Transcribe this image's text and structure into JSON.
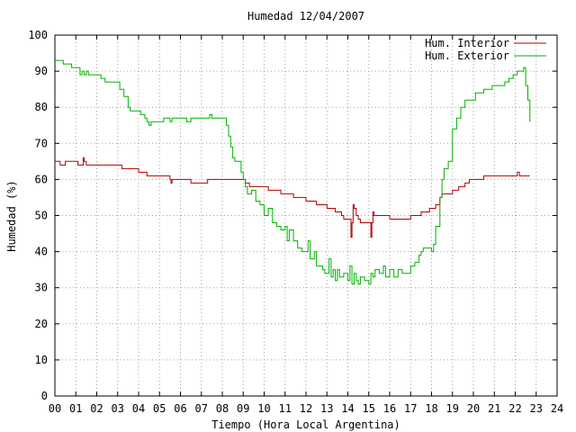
{
  "chart_data": {
    "type": "line",
    "title": "Humedad 12/04/2007",
    "xlabel": "Tiempo (Hora Local Argentina)",
    "ylabel": "Humedad (%)",
    "xlim": [
      0,
      24
    ],
    "ylim": [
      0,
      100
    ],
    "x_ticks": [
      "00",
      "01",
      "02",
      "03",
      "04",
      "05",
      "06",
      "07",
      "08",
      "09",
      "10",
      "11",
      "12",
      "13",
      "14",
      "15",
      "16",
      "17",
      "18",
      "19",
      "20",
      "21",
      "22",
      "23",
      "24"
    ],
    "y_ticks": [
      "0",
      "10",
      "20",
      "30",
      "40",
      "50",
      "60",
      "70",
      "80",
      "90",
      "100"
    ],
    "grid": true,
    "legend_position": "top-right",
    "series": [
      {
        "name": "Hum. Interior",
        "color": "#b00000",
        "points": [
          [
            0.0,
            65
          ],
          [
            0.2,
            65
          ],
          [
            0.25,
            64
          ],
          [
            0.45,
            64
          ],
          [
            0.5,
            65
          ],
          [
            1.0,
            65
          ],
          [
            1.1,
            64
          ],
          [
            1.3,
            64
          ],
          [
            1.35,
            66
          ],
          [
            1.4,
            65
          ],
          [
            1.5,
            64
          ],
          [
            2.0,
            64
          ],
          [
            2.5,
            64
          ],
          [
            3.0,
            64
          ],
          [
            3.2,
            63
          ],
          [
            3.6,
            63
          ],
          [
            4.0,
            62
          ],
          [
            4.2,
            62
          ],
          [
            4.4,
            61
          ],
          [
            5.0,
            61
          ],
          [
            5.4,
            61
          ],
          [
            5.5,
            60
          ],
          [
            5.55,
            59
          ],
          [
            5.6,
            60
          ],
          [
            6.0,
            60
          ],
          [
            6.4,
            60
          ],
          [
            6.5,
            59
          ],
          [
            7.0,
            59
          ],
          [
            7.2,
            59
          ],
          [
            7.3,
            60
          ],
          [
            8.0,
            60
          ],
          [
            8.5,
            60
          ],
          [
            9.0,
            60
          ],
          [
            9.1,
            59
          ],
          [
            9.3,
            58
          ],
          [
            10.0,
            58
          ],
          [
            10.2,
            57
          ],
          [
            10.6,
            57
          ],
          [
            10.8,
            56
          ],
          [
            11.2,
            56
          ],
          [
            11.4,
            55
          ],
          [
            11.8,
            55
          ],
          [
            12.0,
            54
          ],
          [
            12.4,
            54
          ],
          [
            12.5,
            53
          ],
          [
            12.9,
            53
          ],
          [
            13.0,
            52
          ],
          [
            13.3,
            52
          ],
          [
            13.4,
            51
          ],
          [
            13.6,
            51
          ],
          [
            13.7,
            50
          ],
          [
            13.8,
            49
          ],
          [
            14.1,
            49
          ],
          [
            14.15,
            44
          ],
          [
            14.2,
            48
          ],
          [
            14.25,
            53
          ],
          [
            14.3,
            52
          ],
          [
            14.4,
            50
          ],
          [
            14.5,
            49
          ],
          [
            14.6,
            48
          ],
          [
            15.0,
            48
          ],
          [
            15.1,
            44
          ],
          [
            15.15,
            48
          ],
          [
            15.2,
            51
          ],
          [
            15.25,
            50
          ],
          [
            15.6,
            50
          ],
          [
            15.9,
            50
          ],
          [
            16.0,
            49
          ],
          [
            16.5,
            49
          ],
          [
            16.9,
            49
          ],
          [
            17.0,
            50
          ],
          [
            17.4,
            50
          ],
          [
            17.5,
            51
          ],
          [
            17.8,
            51
          ],
          [
            17.9,
            52
          ],
          [
            18.2,
            53
          ],
          [
            18.4,
            55
          ],
          [
            18.5,
            56
          ],
          [
            18.8,
            56
          ],
          [
            19.0,
            57
          ],
          [
            19.3,
            58
          ],
          [
            19.6,
            59
          ],
          [
            19.8,
            60
          ],
          [
            20.2,
            60
          ],
          [
            20.5,
            61
          ],
          [
            21.0,
            61
          ],
          [
            21.5,
            61
          ],
          [
            22.0,
            61
          ],
          [
            22.1,
            62
          ],
          [
            22.2,
            61
          ],
          [
            22.7,
            61
          ]
        ]
      },
      {
        "name": "Hum. Exterior",
        "color": "#00b000",
        "points": [
          [
            0.0,
            93
          ],
          [
            0.3,
            93
          ],
          [
            0.4,
            92
          ],
          [
            0.7,
            92
          ],
          [
            0.8,
            91
          ],
          [
            1.1,
            91
          ],
          [
            1.2,
            89
          ],
          [
            1.3,
            90
          ],
          [
            1.4,
            89
          ],
          [
            1.5,
            90
          ],
          [
            1.6,
            89
          ],
          [
            2.0,
            89
          ],
          [
            2.2,
            88
          ],
          [
            2.4,
            87
          ],
          [
            2.6,
            87
          ],
          [
            3.0,
            87
          ],
          [
            3.1,
            85
          ],
          [
            3.3,
            83
          ],
          [
            3.5,
            80
          ],
          [
            3.6,
            79
          ],
          [
            4.0,
            79
          ],
          [
            4.1,
            78
          ],
          [
            4.3,
            77
          ],
          [
            4.4,
            76
          ],
          [
            4.5,
            75
          ],
          [
            4.6,
            76
          ],
          [
            5.0,
            76
          ],
          [
            5.2,
            77
          ],
          [
            5.5,
            76
          ],
          [
            5.6,
            77
          ],
          [
            6.0,
            77
          ],
          [
            6.3,
            76
          ],
          [
            6.5,
            77
          ],
          [
            7.0,
            77
          ],
          [
            7.3,
            77
          ],
          [
            7.4,
            78
          ],
          [
            7.5,
            77
          ],
          [
            8.0,
            77
          ],
          [
            8.2,
            75
          ],
          [
            8.3,
            72
          ],
          [
            8.4,
            69
          ],
          [
            8.5,
            66
          ],
          [
            8.6,
            65
          ],
          [
            8.8,
            65
          ],
          [
            8.9,
            62
          ],
          [
            9.0,
            60
          ],
          [
            9.1,
            58
          ],
          [
            9.2,
            56
          ],
          [
            9.4,
            57
          ],
          [
            9.6,
            54
          ],
          [
            9.8,
            53
          ],
          [
            10.0,
            50
          ],
          [
            10.2,
            52
          ],
          [
            10.4,
            48
          ],
          [
            10.6,
            47
          ],
          [
            10.8,
            46
          ],
          [
            11.0,
            47
          ],
          [
            11.1,
            43
          ],
          [
            11.2,
            46
          ],
          [
            11.4,
            43
          ],
          [
            11.6,
            41
          ],
          [
            11.8,
            40
          ],
          [
            12.0,
            40
          ],
          [
            12.1,
            43
          ],
          [
            12.2,
            38
          ],
          [
            12.4,
            40
          ],
          [
            12.5,
            36
          ],
          [
            12.6,
            36
          ],
          [
            12.8,
            35
          ],
          [
            12.9,
            34
          ],
          [
            13.0,
            34
          ],
          [
            13.1,
            38
          ],
          [
            13.2,
            33
          ],
          [
            13.3,
            35
          ],
          [
            13.4,
            32
          ],
          [
            13.5,
            35
          ],
          [
            13.6,
            33
          ],
          [
            13.8,
            34
          ],
          [
            14.0,
            32
          ],
          [
            14.1,
            36
          ],
          [
            14.2,
            31
          ],
          [
            14.3,
            34
          ],
          [
            14.4,
            32
          ],
          [
            14.5,
            31
          ],
          [
            14.6,
            33
          ],
          [
            14.8,
            32
          ],
          [
            15.0,
            31
          ],
          [
            15.1,
            34
          ],
          [
            15.2,
            33
          ],
          [
            15.3,
            35
          ],
          [
            15.5,
            34
          ],
          [
            15.7,
            36
          ],
          [
            15.8,
            33
          ],
          [
            16.0,
            35
          ],
          [
            16.2,
            33
          ],
          [
            16.4,
            35
          ],
          [
            16.6,
            34
          ],
          [
            16.8,
            34
          ],
          [
            17.0,
            36
          ],
          [
            17.2,
            37
          ],
          [
            17.4,
            39
          ],
          [
            17.5,
            40
          ],
          [
            17.6,
            41
          ],
          [
            17.8,
            41
          ],
          [
            18.0,
            40
          ],
          [
            18.1,
            42
          ],
          [
            18.2,
            47
          ],
          [
            18.4,
            55
          ],
          [
            18.5,
            60
          ],
          [
            18.6,
            63
          ],
          [
            18.8,
            65
          ],
          [
            19.0,
            74
          ],
          [
            19.2,
            77
          ],
          [
            19.4,
            80
          ],
          [
            19.6,
            82
          ],
          [
            19.8,
            82
          ],
          [
            20.0,
            82
          ],
          [
            20.1,
            84
          ],
          [
            20.3,
            84
          ],
          [
            20.5,
            85
          ],
          [
            20.7,
            85
          ],
          [
            20.9,
            86
          ],
          [
            21.2,
            86
          ],
          [
            21.5,
            87
          ],
          [
            21.7,
            88
          ],
          [
            21.9,
            89
          ],
          [
            22.0,
            89
          ],
          [
            22.1,
            90
          ],
          [
            22.3,
            90
          ],
          [
            22.4,
            91
          ],
          [
            22.5,
            86
          ],
          [
            22.6,
            82
          ],
          [
            22.7,
            76
          ]
        ]
      }
    ]
  }
}
